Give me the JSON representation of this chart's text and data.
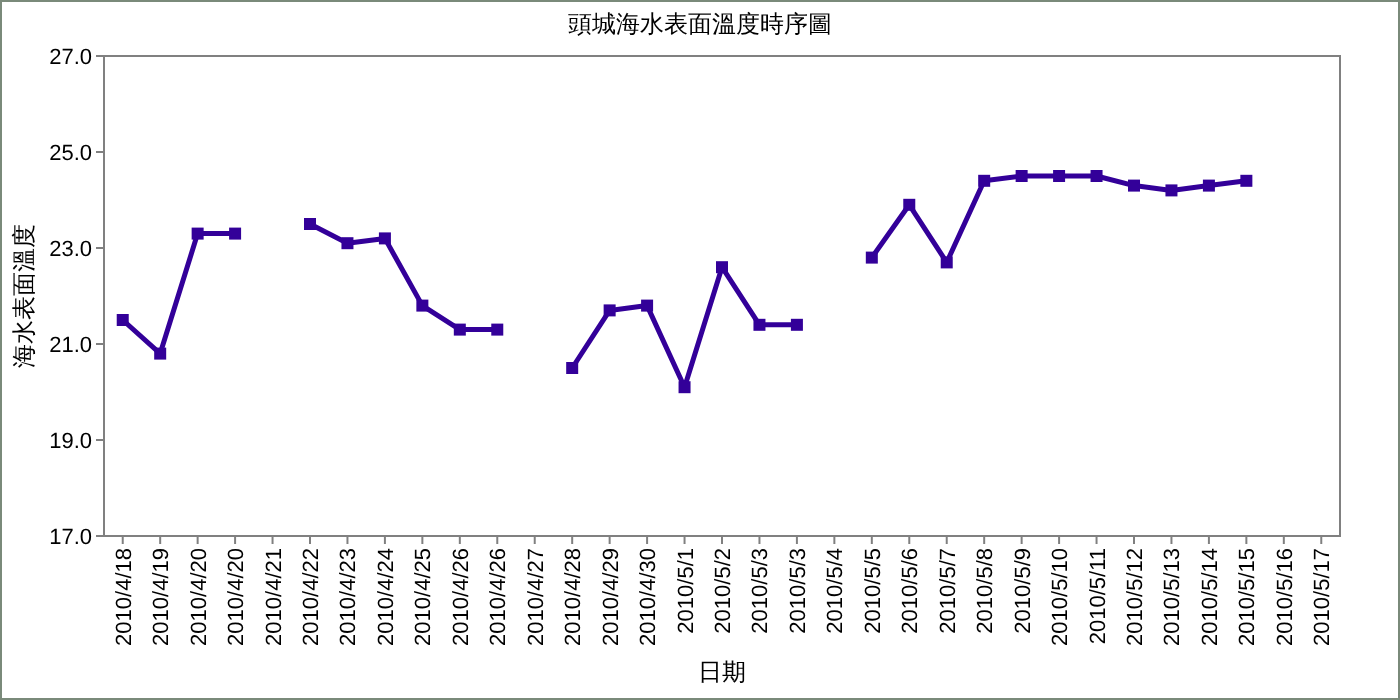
{
  "chart_data": {
    "type": "line",
    "title": "頭城海水表面溫度時序圖",
    "xlabel": "日期",
    "ylabel": "海水表面溫度",
    "categories": [
      "2010/4/18",
      "2010/4/19",
      "2010/4/20",
      "2010/4/20",
      "2010/4/21",
      "2010/4/22",
      "2010/4/23",
      "2010/4/24",
      "2010/4/25",
      "2010/4/26",
      "2010/4/26",
      "2010/4/27",
      "2010/4/28",
      "2010/4/29",
      "2010/4/30",
      "2010/5/1",
      "2010/5/2",
      "2010/5/3",
      "2010/5/3",
      "2010/5/4",
      "2010/5/5",
      "2010/5/6",
      "2010/5/7",
      "2010/5/8",
      "2010/5/9",
      "2010/5/10",
      "2010/5/11",
      "2010/5/12",
      "2010/5/13",
      "2010/5/14",
      "2010/5/15",
      "2010/5/16",
      "2010/5/17"
    ],
    "series": [
      {
        "color": "#330099",
        "values": [
          21.5,
          20.8,
          23.3,
          23.3,
          null,
          23.5,
          23.1,
          23.2,
          21.8,
          21.3,
          21.3,
          null,
          20.5,
          21.7,
          21.8,
          20.1,
          22.6,
          21.4,
          21.4,
          null,
          22.8,
          23.9,
          22.7,
          24.4,
          24.5,
          24.5,
          24.5,
          24.3,
          24.2,
          24.3,
          24.4,
          null,
          null
        ]
      }
    ],
    "ylim": [
      17,
      27
    ],
    "yticks": [
      {
        "value": 17,
        "label": "17.0"
      },
      {
        "value": 19,
        "label": "19.0"
      },
      {
        "value": 21,
        "label": "21.0"
      },
      {
        "value": 23,
        "label": "23.0"
      },
      {
        "value": 25,
        "label": "25.0"
      },
      {
        "value": 27,
        "label": "27.0"
      }
    ],
    "grid": false,
    "marker": "square",
    "line_style": "solid"
  }
}
